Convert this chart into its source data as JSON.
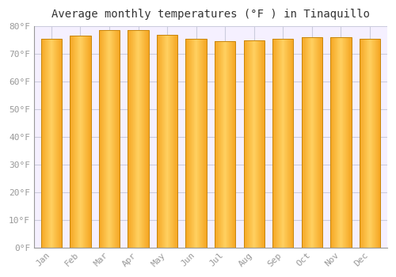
{
  "title": "Average monthly temperatures (°F ) in Tinaquillo",
  "months": [
    "Jan",
    "Feb",
    "Mar",
    "Apr",
    "May",
    "Jun",
    "Jul",
    "Aug",
    "Sep",
    "Oct",
    "Nov",
    "Dec"
  ],
  "values": [
    75.5,
    76.5,
    78.5,
    78.5,
    77.0,
    75.5,
    74.5,
    75.0,
    75.5,
    76.0,
    76.0,
    75.5
  ],
  "bar_color_left": "#F5A623",
  "bar_color_center": "#FFD060",
  "bar_color_right": "#E8920A",
  "bar_edge_color": "#C8850A",
  "ylim": [
    0,
    80
  ],
  "yticks": [
    0,
    10,
    20,
    30,
    40,
    50,
    60,
    70,
    80
  ],
  "ytick_labels": [
    "0°F",
    "10°F",
    "20°F",
    "30°F",
    "40°F",
    "50°F",
    "60°F",
    "70°F",
    "80°F"
  ],
  "background_color": "#ffffff",
  "plot_bg_color": "#f5f0ff",
  "grid_color": "#ccccdd",
  "title_fontsize": 10,
  "tick_fontsize": 8,
  "font_family": "monospace"
}
